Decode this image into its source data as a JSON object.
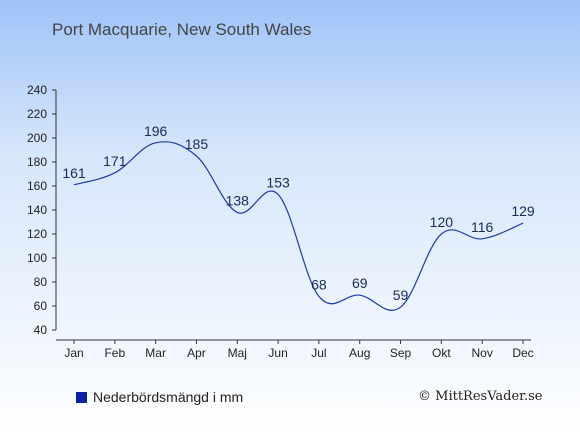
{
  "chart_data": {
    "type": "line",
    "title": "Port Macquarie, New South Wales",
    "categories": [
      "Jan",
      "Feb",
      "Mar",
      "Apr",
      "Maj",
      "Jun",
      "Jul",
      "Aug",
      "Sep",
      "Okt",
      "Nov",
      "Dec"
    ],
    "series": [
      {
        "name": "Nederbördsmängd i mm",
        "values": [
          161,
          171,
          196,
          185,
          138,
          153,
          68,
          69,
          59,
          120,
          116,
          129
        ]
      }
    ],
    "yticks": [
      40,
      60,
      80,
      100,
      120,
      140,
      160,
      180,
      200,
      220,
      240
    ],
    "ylim": [
      40,
      240
    ],
    "grid": false,
    "legend_position": "bottom-left",
    "colors": {
      "line": "#1f3aa8",
      "legend": "#0a22a8",
      "background_top": "#9fc3f7"
    }
  },
  "credit": "© MittResVader.se"
}
